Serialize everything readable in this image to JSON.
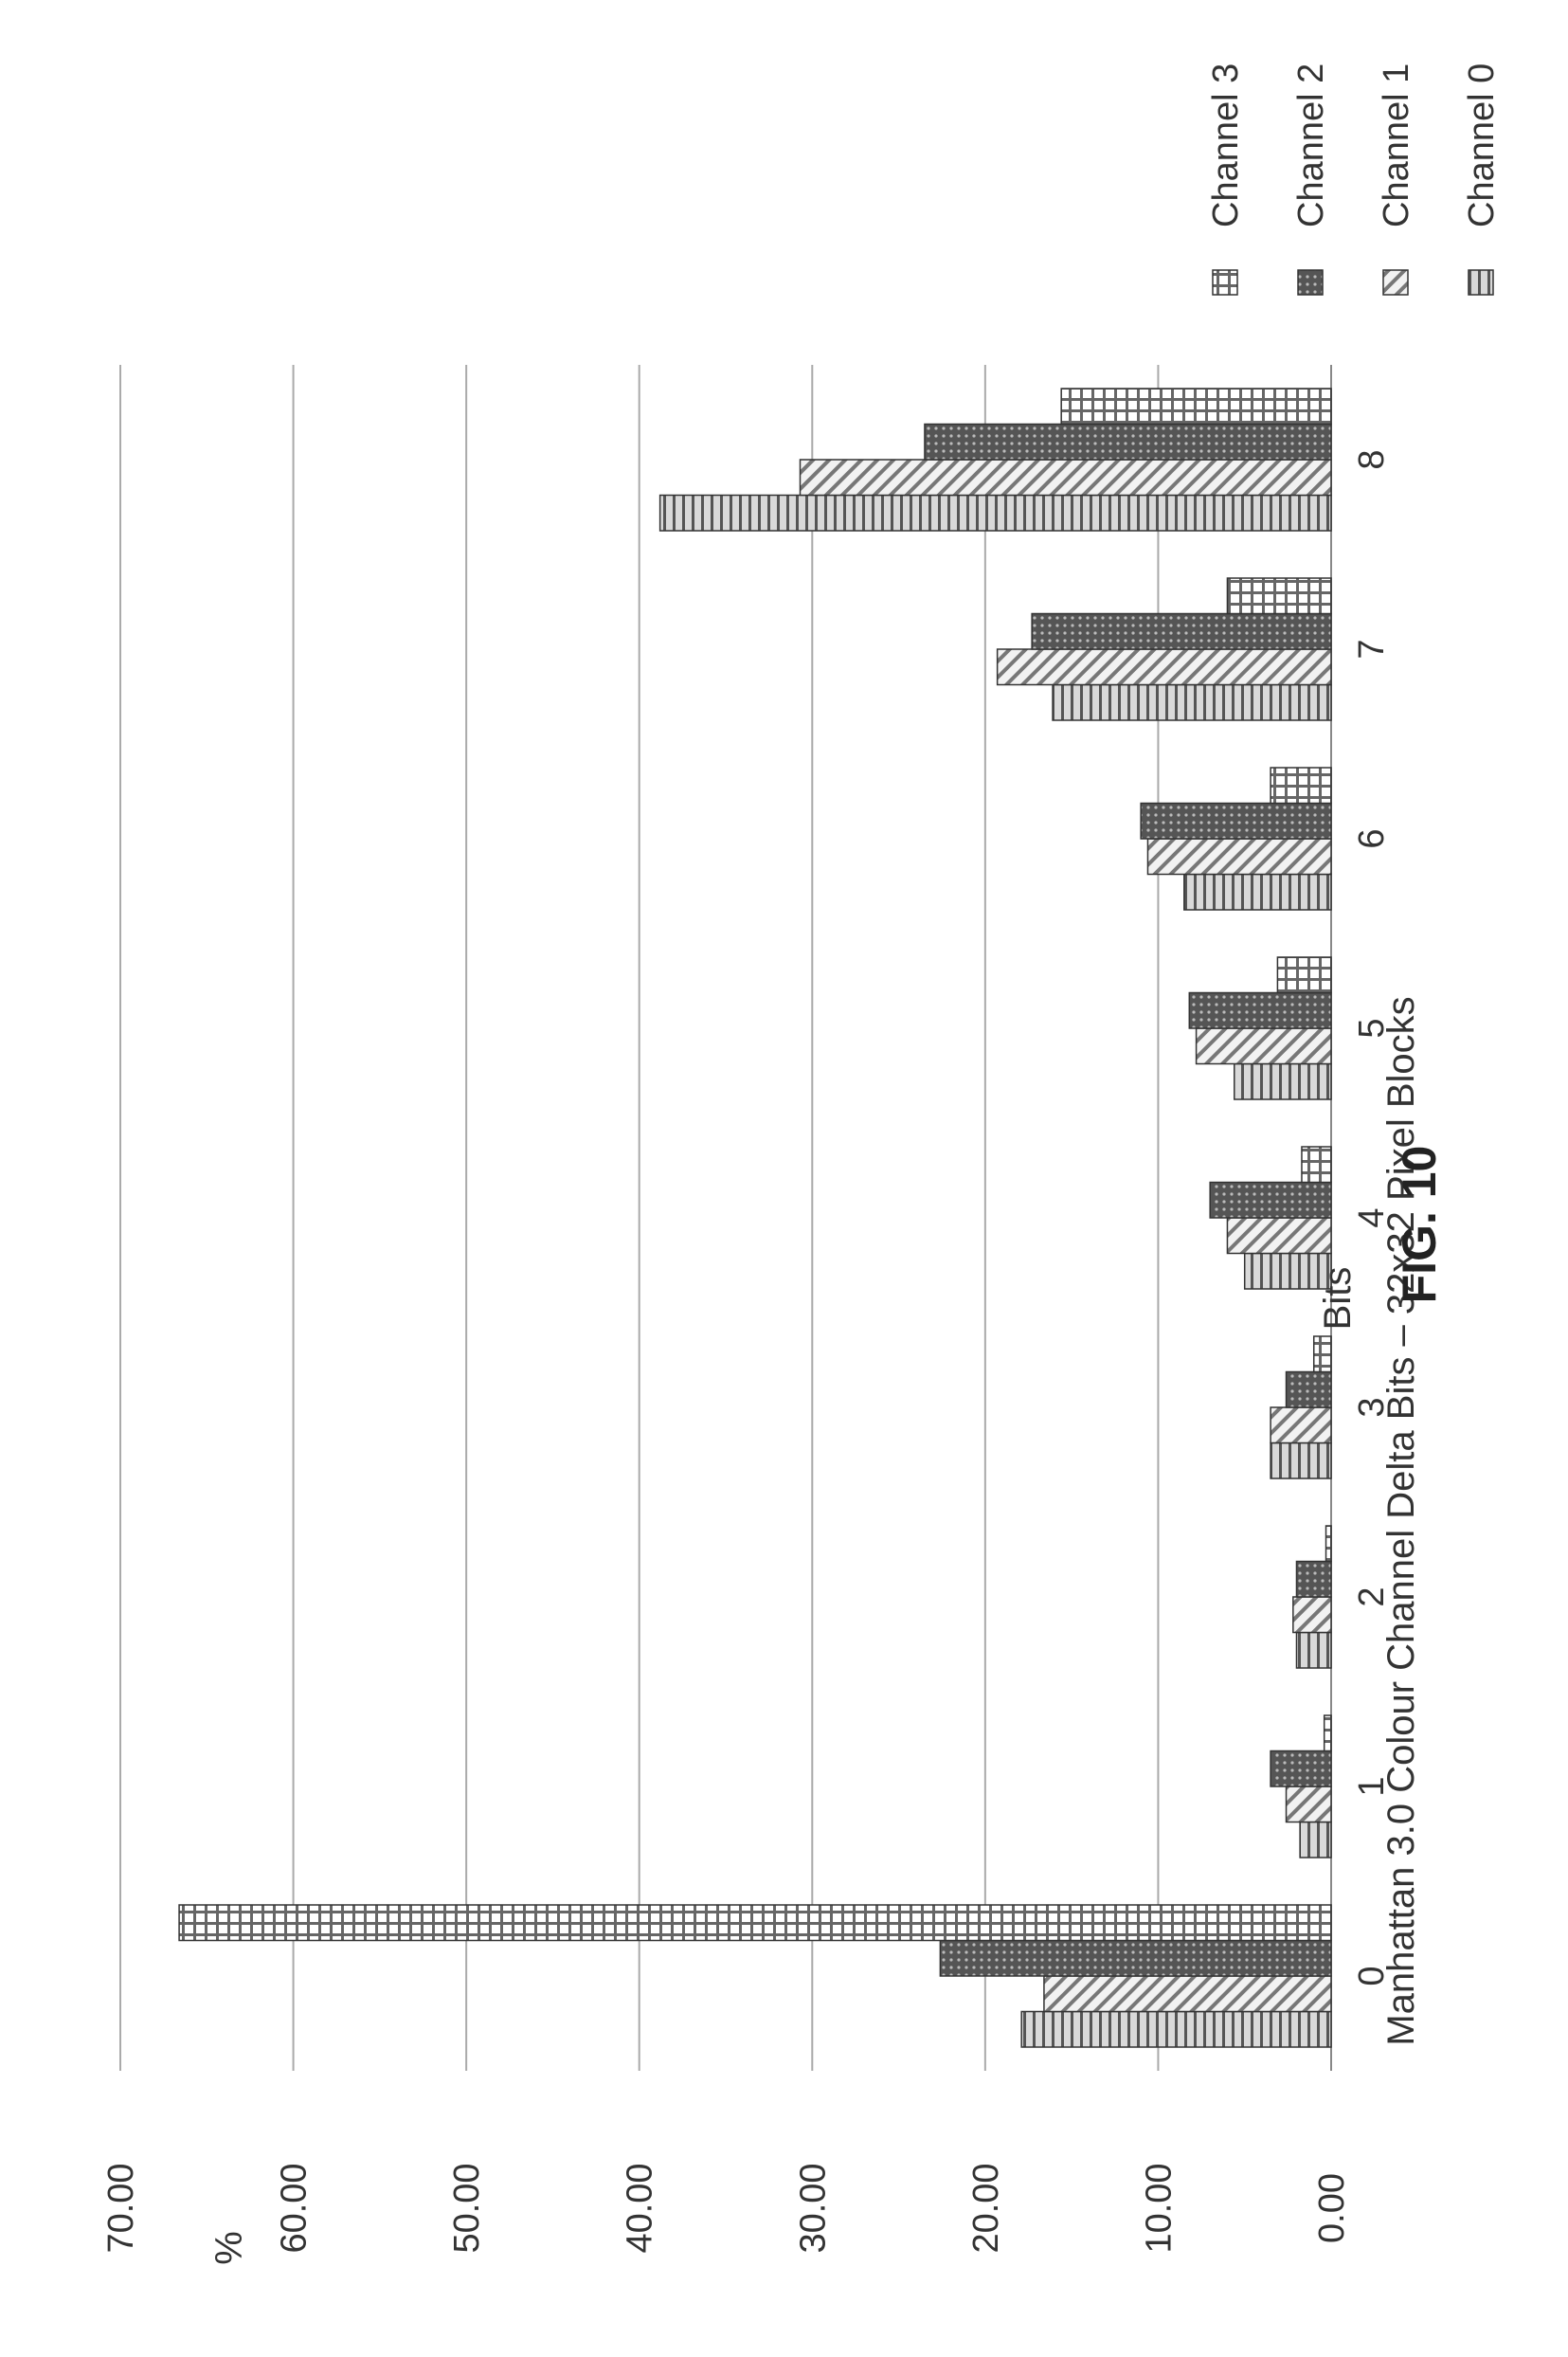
{
  "chart_data": {
    "type": "bar",
    "title": "Manhattan 3.0 Colour Channel Delta Bits – 32x32 Pixel Blocks",
    "xlabel": "Bits",
    "ylabel": "%",
    "ylim": [
      0,
      70
    ],
    "y_ticks": [
      "0.00",
      "10.00",
      "20.00",
      "30.00",
      "40.00",
      "50.00",
      "60.00",
      "70.00"
    ],
    "categories": [
      "0",
      "1",
      "2",
      "3",
      "4",
      "5",
      "6",
      "7",
      "8"
    ],
    "series": [
      {
        "name": "Channel 0",
        "values": [
          17.9,
          1.8,
          2.0,
          3.5,
          5.0,
          5.6,
          8.5,
          16.1,
          38.8
        ],
        "pattern": "hlines"
      },
      {
        "name": "Channel 1",
        "values": [
          16.6,
          2.6,
          2.2,
          3.5,
          6.0,
          7.8,
          10.6,
          19.3,
          30.7
        ],
        "pattern": "diag"
      },
      {
        "name": "Channel 2",
        "values": [
          22.6,
          3.5,
          2.0,
          2.6,
          7.0,
          8.2,
          11.0,
          17.3,
          23.5
        ],
        "pattern": "dots"
      },
      {
        "name": "Channel 3",
        "values": [
          66.6,
          0.4,
          0.3,
          1.0,
          1.7,
          3.1,
          3.5,
          6.0,
          15.6
        ],
        "pattern": "grid"
      }
    ],
    "legend_position": "top-right",
    "grid": true
  },
  "figure_label": "FIG. 10"
}
